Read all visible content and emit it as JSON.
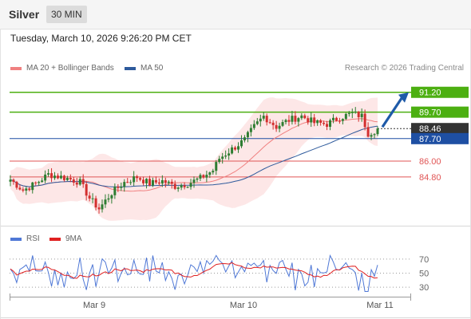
{
  "header": {
    "symbol": "Silver",
    "timeframe": "30 MIN",
    "timestamp": "Tuesday, March 10, 2026 9:26:20 PM CET"
  },
  "legend": {
    "ma20": {
      "label": "MA 20 + Bollinger Bands",
      "color": "#f08080"
    },
    "ma50": {
      "label": "MA 50",
      "color": "#2e5a9c"
    }
  },
  "credit": "Research © 2026 Trading Central",
  "rsi_legend": {
    "rsi": {
      "label": "RSI",
      "color": "#4f78d6"
    },
    "ma9": {
      "label": "9MA",
      "color": "#e02020"
    }
  },
  "colors": {
    "bull": "#2e7d32",
    "bear": "#d32f2f",
    "resistance": "#4caf11",
    "pivot": "#1e4fa3",
    "support": "#e05555",
    "last": "#333333",
    "band_fill": "#fde4e4",
    "arrow": "#1e5aa8"
  },
  "chart_data": [
    {
      "type": "candlestick",
      "symbol": "Silver",
      "timeframe": "30 MIN",
      "x_ticks": [
        "Mar 9",
        "Mar 10",
        "Mar 11"
      ],
      "ylim": [
        81.6,
        92.3
      ],
      "levels": [
        {
          "value": 91.2,
          "label": "91.20",
          "kind": "resistance"
        },
        {
          "value": 89.7,
          "label": "89.70",
          "kind": "resistance"
        },
        {
          "value": 88.46,
          "label": "88.46",
          "kind": "last"
        },
        {
          "value": 87.7,
          "label": "87.70",
          "kind": "pivot"
        },
        {
          "value": 86.0,
          "label": "86.00",
          "kind": "support"
        },
        {
          "value": 84.8,
          "label": "84.80",
          "kind": "support"
        }
      ],
      "target_arrow": {
        "from": 88.46,
        "to": 91.2
      },
      "overlays": [
        "MA 20 + Bollinger Bands",
        "MA 50"
      ]
    },
    {
      "type": "line",
      "series": [
        {
          "name": "RSI",
          "color": "#4f78d6"
        },
        {
          "name": "9MA",
          "color": "#e02020"
        }
      ],
      "y_ticks": [
        70,
        50,
        30
      ],
      "ylim": [
        20,
        80
      ]
    }
  ]
}
